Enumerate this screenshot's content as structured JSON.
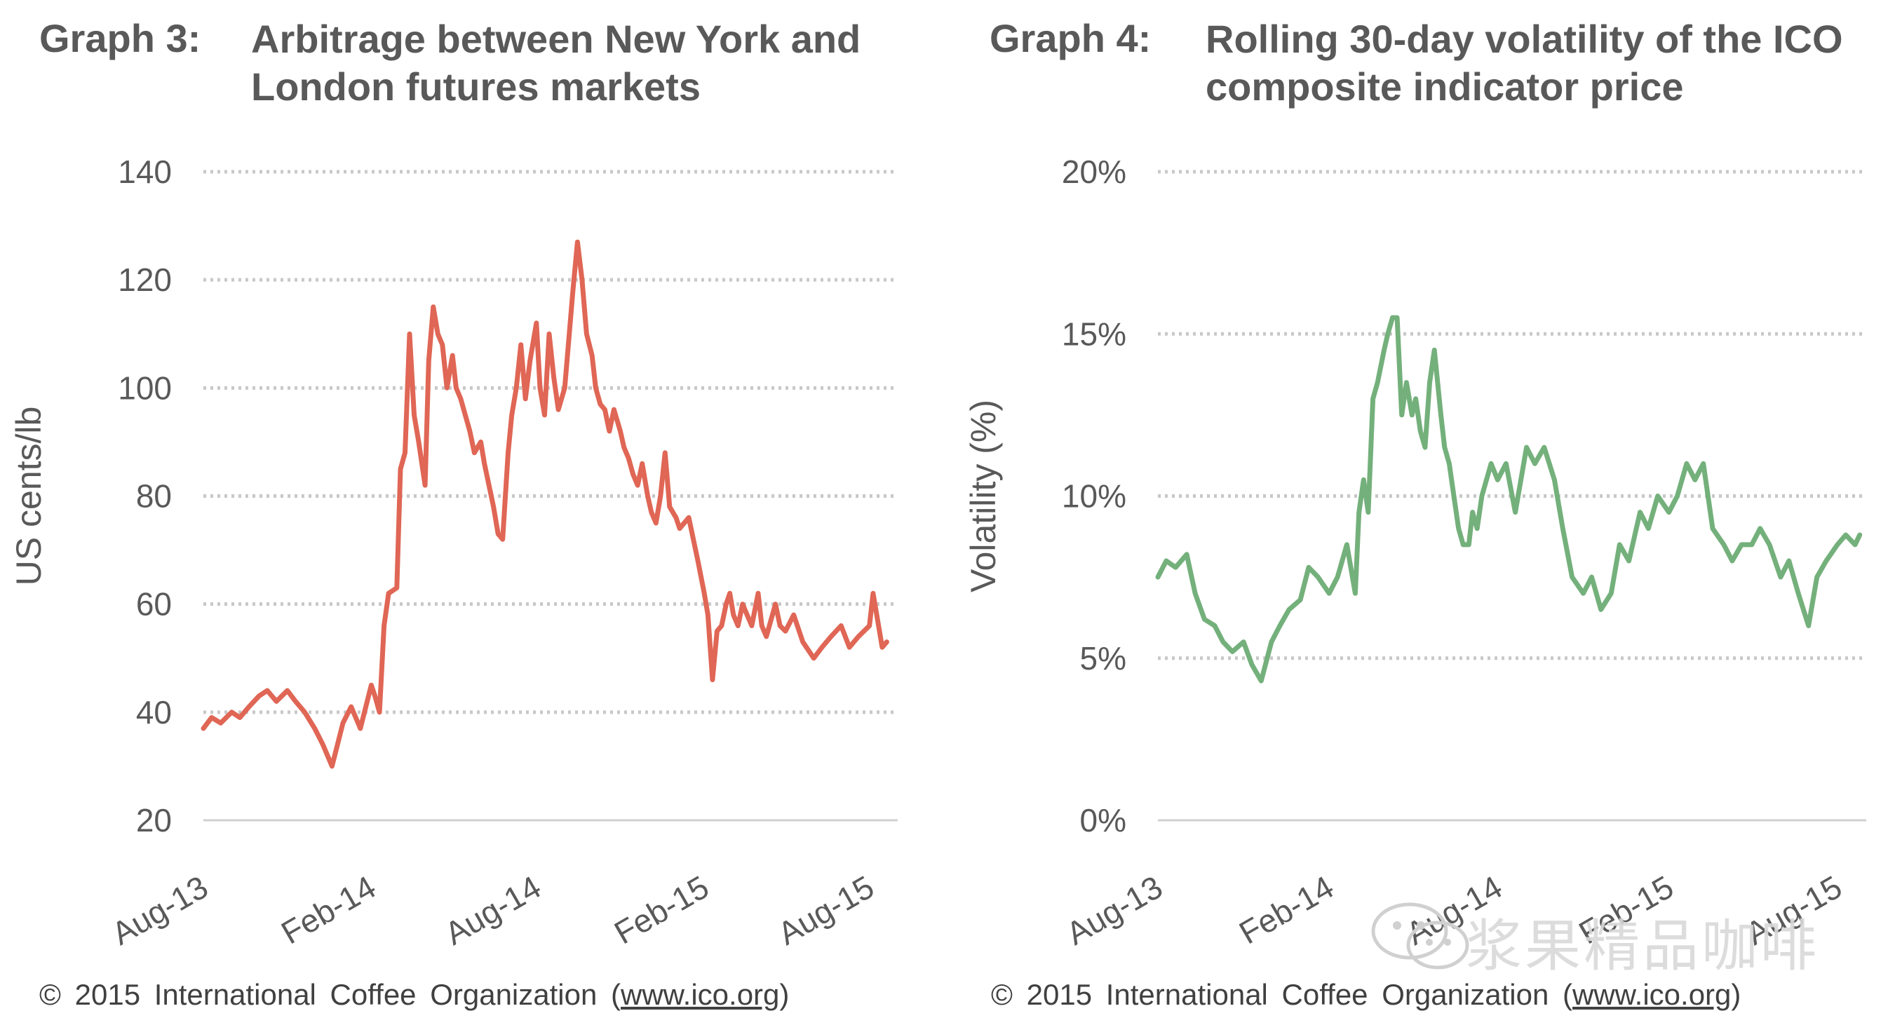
{
  "panels": [
    {
      "label": "Graph 3:",
      "title_line1": "Arbitrage between New York and",
      "title_line2": "London futures markets",
      "copyright_prefix": "© 2015 International Coffee Organization (",
      "copyright_url": "www.ico.org",
      "copyright_suffix": ")"
    },
    {
      "label": "Graph 4:",
      "title_line1": "Rolling 30-day volatility of the ICO",
      "title_line2": "composite indicator price",
      "copyright_prefix": "© 2015 International Coffee Organization (",
      "copyright_url": "www.ico.org",
      "copyright_suffix": ")"
    }
  ],
  "watermark": {
    "text": "浆果精品咖啡"
  },
  "chart_data": [
    {
      "type": "line",
      "title": "Arbitrage between New York and London futures markets",
      "xlabel": "",
      "ylabel": "US cents/lb",
      "ylim": [
        20,
        140
      ],
      "yticks": [
        20,
        40,
        60,
        80,
        100,
        120,
        140
      ],
      "ytick_labels": [
        "20",
        "40",
        "60",
        "80",
        "100",
        "120",
        "140"
      ],
      "xlim": [
        "2013-08",
        "2015-09"
      ],
      "xtick_labels": [
        "Aug-13",
        "Feb-14",
        "Aug-14",
        "Feb-15",
        "Aug-15"
      ],
      "grid": "horizontal dotted",
      "color": "#e06655",
      "series": [
        {
          "x": [
            "2013-08-01",
            "2013-08-10",
            "2013-08-20",
            "2013-09-01",
            "2013-09-10",
            "2013-09-20",
            "2013-10-01",
            "2013-10-10",
            "2013-10-20",
            "2013-11-01",
            "2013-11-10",
            "2013-11-20",
            "2013-12-01",
            "2013-12-10",
            "2013-12-20",
            "2014-01-01",
            "2014-01-10",
            "2014-01-20",
            "2014-02-01",
            "2014-02-05",
            "2014-02-10",
            "2014-02-15",
            "2014-02-20",
            "2014-03-01",
            "2014-03-05",
            "2014-03-10",
            "2014-03-15",
            "2014-03-20",
            "2014-03-25",
            "2014-04-01",
            "2014-04-05",
            "2014-04-10",
            "2014-04-15",
            "2014-04-20",
            "2014-04-25",
            "2014-05-01",
            "2014-05-05",
            "2014-05-10",
            "2014-05-15",
            "2014-05-20",
            "2014-05-25",
            "2014-06-01",
            "2014-06-05",
            "2014-06-10",
            "2014-06-15",
            "2014-06-20",
            "2014-06-25",
            "2014-07-01",
            "2014-07-05",
            "2014-07-10",
            "2014-07-15",
            "2014-07-20",
            "2014-07-25",
            "2014-08-01",
            "2014-08-05",
            "2014-08-10",
            "2014-08-15",
            "2014-08-20",
            "2014-08-25",
            "2014-09-01",
            "2014-09-05",
            "2014-09-10",
            "2014-09-15",
            "2014-09-20",
            "2014-09-25",
            "2014-10-01",
            "2014-10-05",
            "2014-10-10",
            "2014-10-15",
            "2014-10-20",
            "2014-10-25",
            "2014-11-01",
            "2014-11-05",
            "2014-11-10",
            "2014-11-15",
            "2014-11-20",
            "2014-11-25",
            "2014-12-01",
            "2014-12-05",
            "2014-12-10",
            "2014-12-15",
            "2014-12-20",
            "2014-12-25",
            "2015-01-01",
            "2015-01-05",
            "2015-01-10",
            "2015-01-15",
            "2015-01-20",
            "2015-01-25",
            "2015-02-01",
            "2015-02-05",
            "2015-02-10",
            "2015-02-15",
            "2015-02-20",
            "2015-02-25",
            "2015-03-01",
            "2015-03-05",
            "2015-03-10",
            "2015-03-15",
            "2015-03-20",
            "2015-03-25",
            "2015-04-01",
            "2015-04-05",
            "2015-04-10",
            "2015-04-15",
            "2015-04-20",
            "2015-04-25",
            "2015-05-01",
            "2015-05-10",
            "2015-05-20",
            "2015-06-01",
            "2015-06-10",
            "2015-06-20",
            "2015-07-01",
            "2015-07-10",
            "2015-07-20",
            "2015-08-01",
            "2015-08-05",
            "2015-08-10",
            "2015-08-15",
            "2015-08-20"
          ],
          "y": [
            37,
            39,
            38,
            40,
            39,
            41,
            43,
            44,
            42,
            44,
            42,
            40,
            37,
            34,
            30,
            38,
            41,
            37,
            45,
            43,
            40,
            56,
            62,
            63,
            85,
            88,
            110,
            95,
            90,
            82,
            105,
            115,
            110,
            108,
            100,
            106,
            100,
            98,
            95,
            92,
            88,
            90,
            86,
            82,
            78,
            73,
            72,
            88,
            95,
            100,
            108,
            98,
            105,
            112,
            100,
            95,
            110,
            102,
            96,
            100,
            108,
            118,
            127,
            120,
            110,
            106,
            100,
            97,
            96,
            92,
            96,
            92,
            89,
            87,
            84,
            82,
            86,
            80,
            77,
            75,
            80,
            88,
            78,
            76,
            74,
            75,
            76,
            72,
            68,
            62,
            58,
            46,
            55,
            56,
            60,
            62,
            58,
            56,
            60,
            58,
            56,
            62,
            56,
            54,
            57,
            60,
            56,
            55,
            58,
            53,
            50,
            52,
            54,
            56,
            52,
            54,
            56,
            62,
            57,
            52,
            53
          ]
        }
      ]
    },
    {
      "type": "line",
      "title": "Rolling 30-day volatility of the ICO composite indicator price",
      "xlabel": "",
      "ylabel": "Volatility (%)",
      "ylim": [
        0,
        20
      ],
      "yticks": [
        0,
        5,
        10,
        15,
        20
      ],
      "ytick_labels": [
        "0%",
        "5%",
        "10%",
        "15%",
        "20%"
      ],
      "xlim": [
        "2013-08",
        "2015-09"
      ],
      "xtick_labels": [
        "Aug-13",
        "Feb-14",
        "Aug-14",
        "Feb-15",
        "Aug-15"
      ],
      "grid": "horizontal dotted",
      "color": "#74b07b",
      "series": [
        {
          "x": [
            "2013-08-01",
            "2013-08-10",
            "2013-08-20",
            "2013-09-01",
            "2013-09-10",
            "2013-09-20",
            "2013-10-01",
            "2013-10-10",
            "2013-10-20",
            "2013-11-01",
            "2013-11-10",
            "2013-11-20",
            "2013-12-01",
            "2013-12-10",
            "2013-12-20",
            "2014-01-01",
            "2014-01-10",
            "2014-01-20",
            "2014-02-01",
            "2014-02-10",
            "2014-02-20",
            "2014-03-01",
            "2014-03-05",
            "2014-03-10",
            "2014-03-15",
            "2014-03-20",
            "2014-03-25",
            "2014-04-01",
            "2014-04-05",
            "2014-04-10",
            "2014-04-15",
            "2014-04-20",
            "2014-04-25",
            "2014-05-01",
            "2014-05-05",
            "2014-05-10",
            "2014-05-15",
            "2014-05-20",
            "2014-05-25",
            "2014-06-01",
            "2014-06-05",
            "2014-06-10",
            "2014-06-15",
            "2014-06-20",
            "2014-06-25",
            "2014-07-01",
            "2014-07-05",
            "2014-07-10",
            "2014-07-15",
            "2014-07-20",
            "2014-07-25",
            "2014-08-01",
            "2014-08-10",
            "2014-08-20",
            "2014-09-01",
            "2014-09-10",
            "2014-09-20",
            "2014-10-01",
            "2014-10-10",
            "2014-10-20",
            "2014-11-01",
            "2014-11-10",
            "2014-11-20",
            "2014-12-01",
            "2014-12-10",
            "2014-12-20",
            "2015-01-01",
            "2015-01-10",
            "2015-01-20",
            "2015-02-01",
            "2015-02-10",
            "2015-02-20",
            "2015-03-01",
            "2015-03-10",
            "2015-03-20",
            "2015-04-01",
            "2015-04-10",
            "2015-04-20",
            "2015-05-01",
            "2015-05-10",
            "2015-05-20",
            "2015-06-01",
            "2015-06-10",
            "2015-06-20",
            "2015-07-01",
            "2015-07-10",
            "2015-07-20",
            "2015-08-01",
            "2015-08-10",
            "2015-08-20",
            "2015-08-25"
          ],
          "y": [
            7.5,
            8.0,
            7.8,
            8.2,
            7.0,
            6.2,
            6.0,
            5.5,
            5.2,
            5.5,
            4.8,
            4.3,
            5.5,
            6.0,
            6.5,
            6.8,
            7.8,
            7.5,
            7.0,
            7.5,
            8.5,
            7.0,
            9.5,
            10.5,
            9.5,
            13.0,
            13.5,
            14.5,
            15.0,
            15.5,
            15.5,
            12.5,
            13.5,
            12.5,
            13.0,
            12.0,
            11.5,
            13.5,
            14.5,
            12.5,
            11.5,
            11.0,
            10.0,
            9.0,
            8.5,
            8.5,
            9.5,
            9.0,
            10.0,
            10.5,
            11.0,
            10.5,
            11.0,
            9.5,
            11.5,
            11.0,
            11.5,
            10.5,
            9.0,
            7.5,
            7.0,
            7.5,
            6.5,
            7.0,
            8.5,
            8.0,
            9.5,
            9.0,
            10.0,
            9.5,
            10.0,
            11.0,
            10.5,
            11.0,
            9.0,
            8.5,
            8.0,
            8.5,
            8.5,
            9.0,
            8.5,
            7.5,
            8.0,
            7.0,
            6.0,
            7.5,
            8.0,
            8.5,
            8.8,
            8.5,
            8.8
          ]
        }
      ]
    }
  ]
}
